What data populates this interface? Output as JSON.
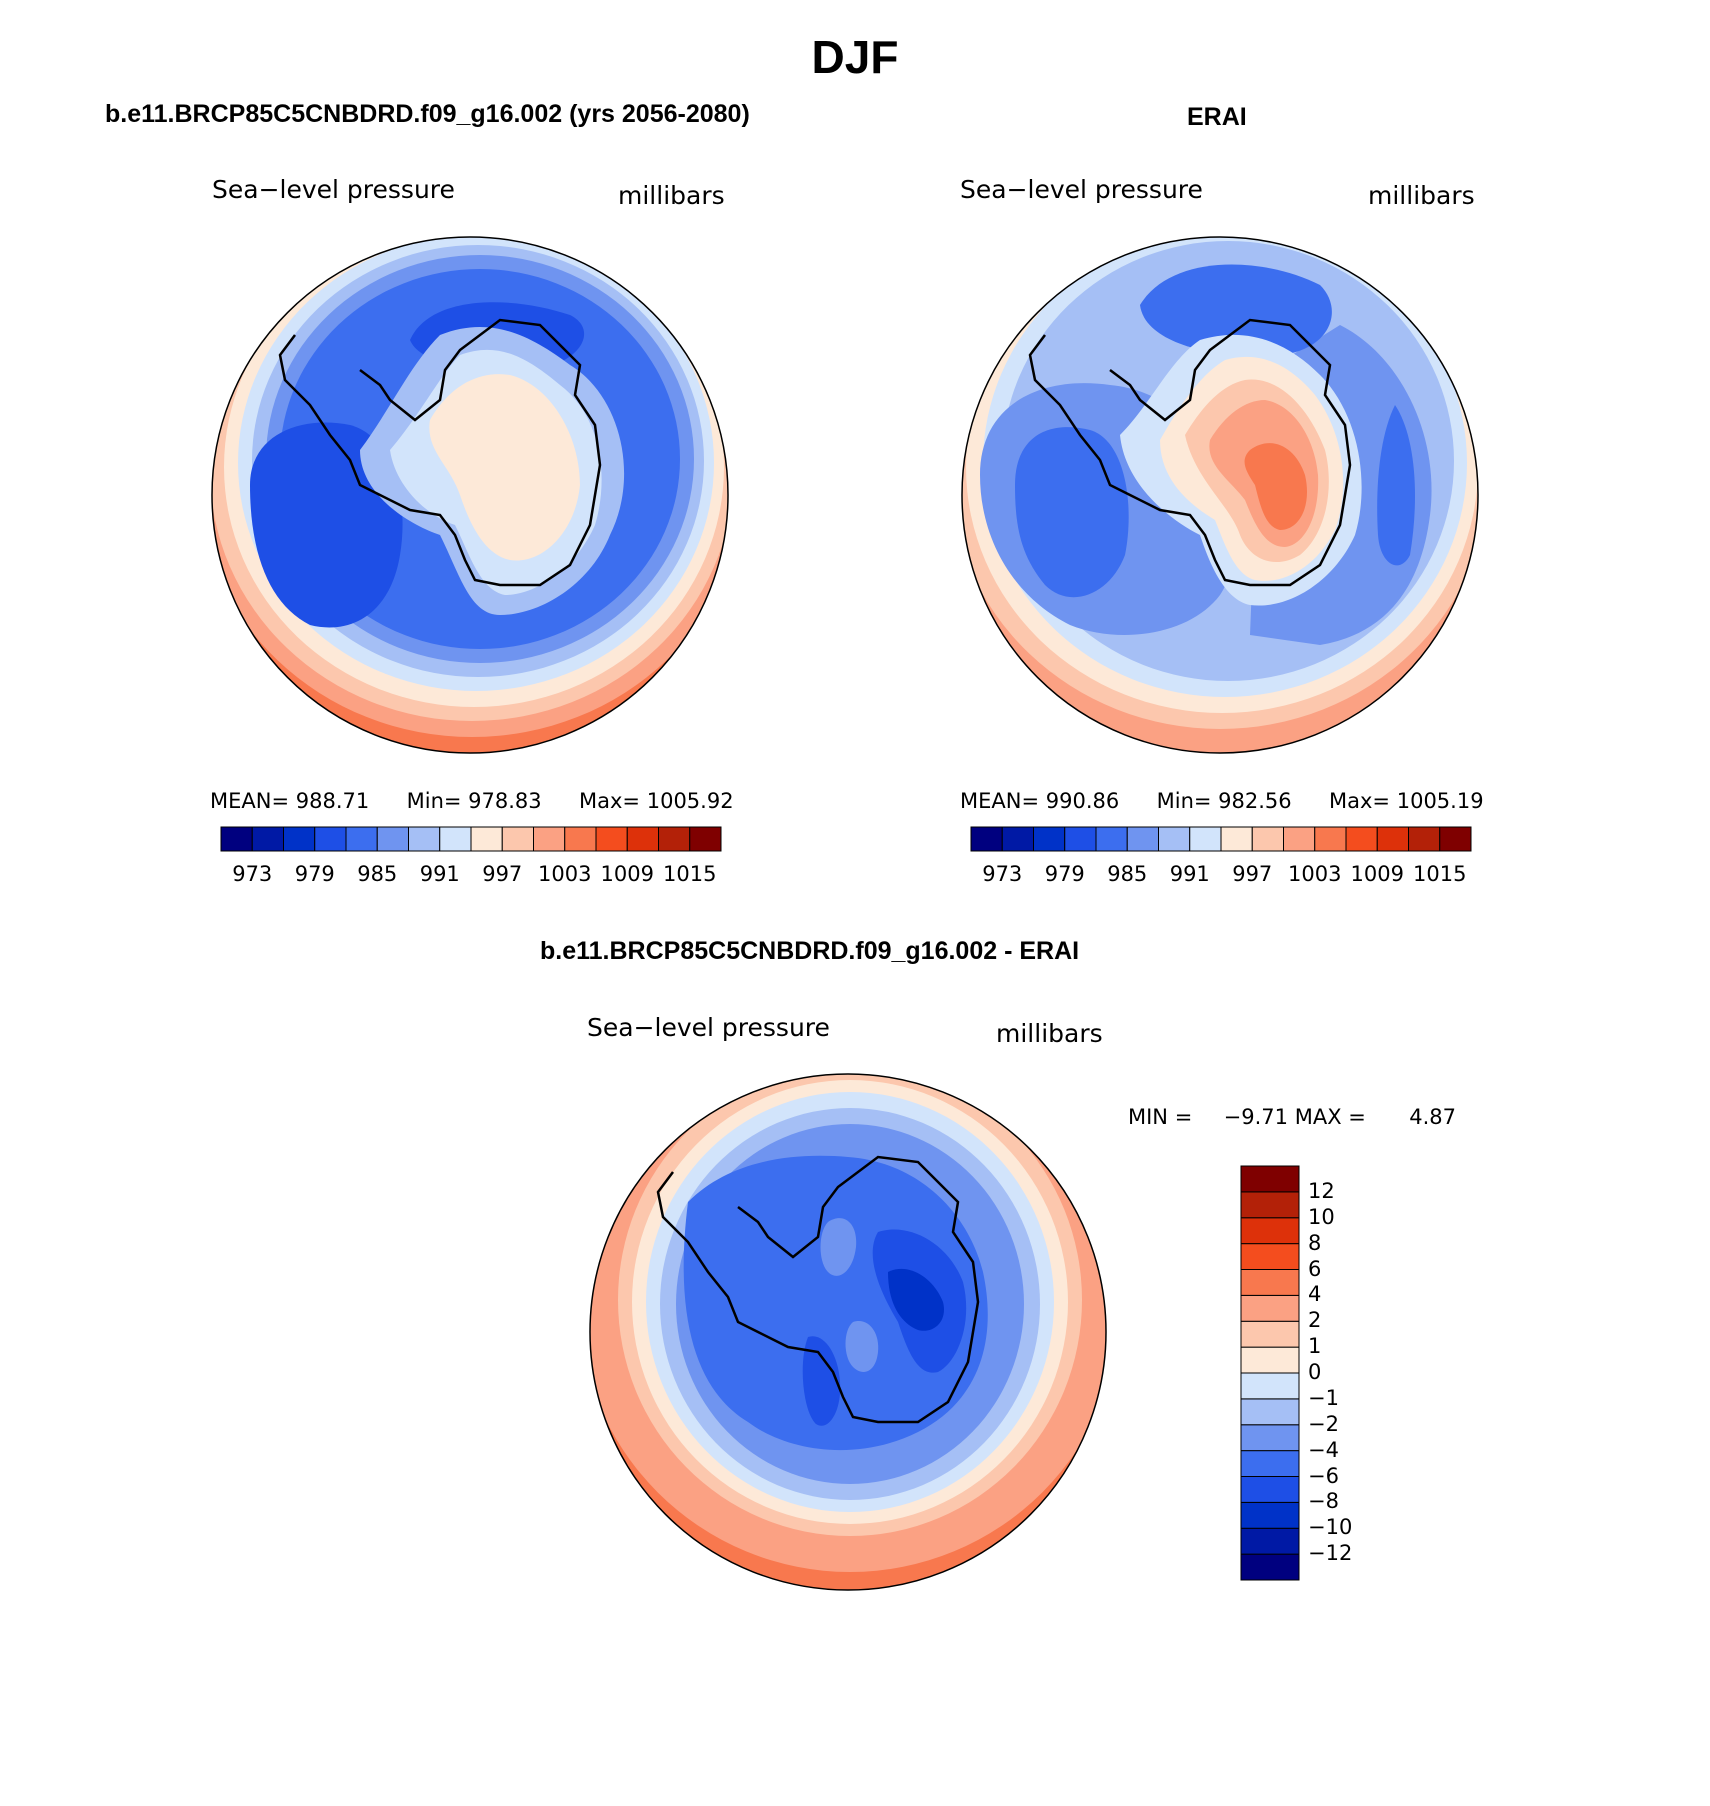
{
  "title": "DJF",
  "panels": [
    {
      "title": "b.e11.BRCP85C5CNBDRD.f09_g16.002 (yrs 2056-2080)",
      "variable": "Sea−level pressure",
      "units": "millibars",
      "stats": {
        "mean_label": "MEAN=",
        "mean": "988.71",
        "min_label": "Min=",
        "min": "978.83",
        "max_label": "Max=",
        "max": "1005.92"
      }
    },
    {
      "title": "ERAI",
      "variable": "Sea−level pressure",
      "units": "millibars",
      "stats": {
        "mean_label": "MEAN=",
        "mean": "990.86",
        "min_label": "Min=",
        "min": "982.56",
        "max_label": "Max=",
        "max": "1005.19"
      }
    },
    {
      "title": "b.e11.BRCP85C5CNBDRD.f09_g16.002 - ERAI",
      "variable": "Sea−level pressure",
      "units": "millibars",
      "stats": {
        "min_label": "MIN =",
        "min": "−9.71",
        "max_label": "MAX =",
        "max": "4.87"
      }
    }
  ],
  "colorbar_top": {
    "colors": [
      "#00007f",
      "#0019a5",
      "#0032c8",
      "#1e4fe6",
      "#3c6eef",
      "#6f94f0",
      "#a5bff5",
      "#d2e4fb",
      "#fde9d8",
      "#fcc7ad",
      "#fba183",
      "#f8784e",
      "#f44d1e",
      "#dd310a",
      "#b32108",
      "#7f0000"
    ],
    "tick_labels": [
      "973",
      "979",
      "985",
      "991",
      "997",
      "1003",
      "1009",
      "1015"
    ]
  },
  "colorbar_diff": {
    "colors_bottom_to_top": [
      "#00007f",
      "#0019a5",
      "#0032c8",
      "#1e4fe6",
      "#3c6eef",
      "#6f94f0",
      "#a5bff5",
      "#d2e4fb",
      "#fde9d8",
      "#fcc7ad",
      "#fba183",
      "#f8784e",
      "#f44d1e",
      "#dd310a",
      "#b32108",
      "#7f0000"
    ],
    "tick_labels_bottom_to_top": [
      "−12",
      "−10",
      "−8",
      "−6",
      "−4",
      "−2",
      "−1",
      "0",
      "1",
      "2",
      "4",
      "6",
      "8",
      "10",
      "12"
    ]
  }
}
